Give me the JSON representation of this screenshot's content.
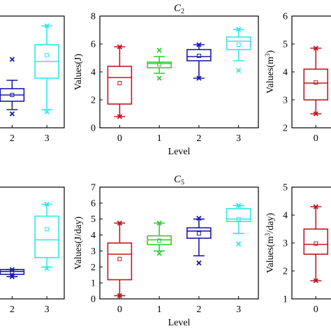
{
  "chart_data": [
    {
      "type": "box",
      "title": "",
      "xlabel": "",
      "ylabel": "",
      "categories": [
        "2",
        "3"
      ],
      "xlim": [
        1.45,
        3.5
      ],
      "ylim": [
        null,
        null
      ],
      "yticks": [],
      "colors": [
        "#1a1aa8",
        "#33e6e6"
      ],
      "boxes": [
        {
          "x": "2",
          "whisker_low": 1.55,
          "q1": 1.75,
          "median": 1.9,
          "q3": 2.05,
          "whisker_high": 2.25,
          "mean": 1.9,
          "min": 1.45,
          "max": 2.75
        },
        {
          "x": "3",
          "whisker_low": 1.55,
          "q1": 2.3,
          "median": 2.7,
          "q3": 3.1,
          "whisker_high": 3.55,
          "mean": 2.85,
          "min": 1.5,
          "max": 3.55
        }
      ]
    },
    {
      "type": "box",
      "title": "C",
      "title_subscript": "2",
      "xlabel": "Level",
      "ylabel": "Values(J)",
      "categories": [
        "0",
        "1",
        "2",
        "3"
      ],
      "xlim": [
        -0.5,
        3.5
      ],
      "ylim": [
        0,
        8
      ],
      "yticks": [
        "0",
        "2",
        "4",
        "6",
        "8"
      ],
      "colors": [
        "#c0181f",
        "#33cc33",
        "#1a1aa8",
        "#33e6e6"
      ],
      "boxes": [
        {
          "x": "0",
          "whisker_low": 0.8,
          "q1": 1.7,
          "median": 3.6,
          "q3": 4.4,
          "whisker_high": 5.8,
          "mean": 3.2,
          "min": 0.8,
          "max": 5.8
        },
        {
          "x": "1",
          "whisker_low": 3.9,
          "q1": 4.3,
          "median": 4.6,
          "q3": 4.7,
          "whisker_high": 5.1,
          "mean": 4.55,
          "min": 3.55,
          "max": 5.55
        },
        {
          "x": "2",
          "whisker_low": 3.55,
          "q1": 4.8,
          "median": 5.1,
          "q3": 5.6,
          "whisker_high": 5.95,
          "mean": 5.15,
          "min": 3.55,
          "max": 5.95
        },
        {
          "x": "3",
          "whisker_low": 4.8,
          "q1": 5.6,
          "median": 6.2,
          "q3": 6.5,
          "whisker_high": 7.05,
          "mean": 5.95,
          "min": 4.1,
          "max": 7.05
        }
      ]
    },
    {
      "type": "box",
      "title": "",
      "xlabel": "",
      "ylabel": "Values(m3)",
      "ylabel_base": "Values(m",
      "ylabel_sup": "3",
      "ylabel_end": ")",
      "categories": [
        "0"
      ],
      "xlim": [
        -0.5,
        0.55
      ],
      "ylim": [
        2,
        6
      ],
      "yticks": [
        "2",
        "3",
        "4",
        "5",
        "6"
      ],
      "colors": [
        "#c0181f"
      ],
      "boxes": [
        {
          "x": "0",
          "whisker_low": 2.5,
          "q1": 3.0,
          "median": 3.6,
          "q3": 4.1,
          "whisker_high": 4.85,
          "mean": 3.62,
          "min": 2.5,
          "max": 4.85
        }
      ]
    },
    {
      "type": "box",
      "title": "",
      "xlabel": "",
      "ylabel": "",
      "categories": [
        "2",
        "3"
      ],
      "xlim": [
        1.45,
        3.5
      ],
      "ylim": [
        null,
        null
      ],
      "yticks": [],
      "colors": [
        "#1a1aa8",
        "#33e6e6"
      ],
      "boxes": [
        {
          "x": "2",
          "whisker_low": 1.2,
          "q1": 1.3,
          "median": 1.42,
          "q3": 1.5,
          "whisker_high": 1.5,
          "mean": 1.4,
          "min": 1.2,
          "max": 1.5
        },
        {
          "x": "3",
          "whisker_low": 1.6,
          "q1": 2.0,
          "median": 2.75,
          "q3": 3.75,
          "whisker_high": 4.25,
          "mean": 3.2,
          "min": 1.55,
          "max": 4.25
        }
      ]
    },
    {
      "type": "box",
      "title": "C",
      "title_subscript": "5",
      "xlabel": "Level",
      "ylabel": "Values(J/day)",
      "categories": [
        "0",
        "1",
        "2",
        "3"
      ],
      "xlim": [
        -0.5,
        3.5
      ],
      "ylim": [
        0,
        7
      ],
      "yticks": [
        "0",
        "1",
        "2",
        "3",
        "4",
        "5",
        "6",
        "7"
      ],
      "colors": [
        "#c0181f",
        "#33cc33",
        "#1a1aa8",
        "#33e6e6"
      ],
      "boxes": [
        {
          "x": "0",
          "whisker_low": 0.2,
          "q1": 1.2,
          "median": 2.8,
          "q3": 3.5,
          "whisker_high": 4.75,
          "mean": 2.5,
          "min": 0.2,
          "max": 4.75
        },
        {
          "x": "1",
          "whisker_low": 3.0,
          "q1": 3.4,
          "median": 3.7,
          "q3": 3.95,
          "whisker_high": 4.75,
          "mean": 3.65,
          "min": 2.85,
          "max": 4.75
        },
        {
          "x": "2",
          "whisker_low": 2.7,
          "q1": 3.8,
          "median": 4.25,
          "q3": 4.45,
          "whisker_high": 5.0,
          "mean": 4.1,
          "min": 2.25,
          "max": 5.05
        },
        {
          "x": "3",
          "whisker_low": 4.1,
          "q1": 4.85,
          "median": 5.0,
          "q3": 5.65,
          "whisker_high": 5.85,
          "mean": 5.0,
          "min": 3.45,
          "max": 5.85
        }
      ]
    },
    {
      "type": "box",
      "title": "",
      "xlabel": "",
      "ylabel": "Values(m3/day)",
      "ylabel_base": "Values(m",
      "ylabel_sup": "3",
      "ylabel_end": "/day)",
      "categories": [
        "0"
      ],
      "xlim": [
        -0.5,
        0.55
      ],
      "ylim": [
        1,
        5
      ],
      "yticks": [
        "1",
        "2",
        "3",
        "4",
        "5"
      ],
      "colors": [
        "#c0181f"
      ],
      "boxes": [
        {
          "x": "0",
          "whisker_low": 1.65,
          "q1": 2.6,
          "median": 2.95,
          "q3": 3.5,
          "whisker_high": 4.3,
          "mean": 2.98,
          "min": 1.65,
          "max": 4.3
        }
      ]
    }
  ]
}
